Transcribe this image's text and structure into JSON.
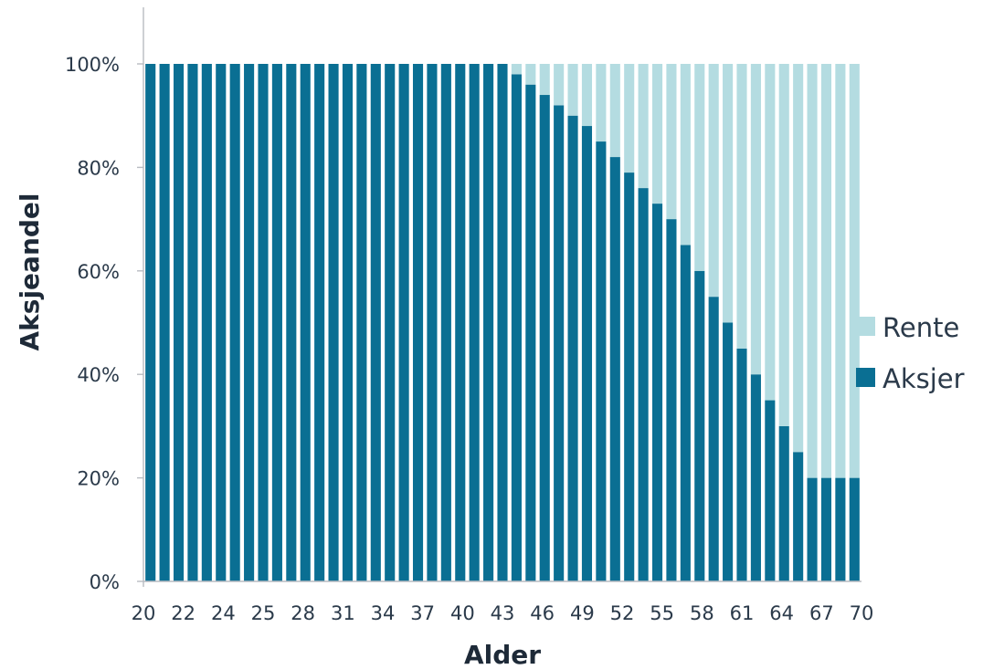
{
  "chart_data": {
    "type": "bar",
    "stacked": true,
    "xlabel": "Alder",
    "ylabel": "Aksjeandel",
    "ylim": [
      0,
      100
    ],
    "y_ticks": [
      "0%",
      "20%",
      "40%",
      "60%",
      "80%",
      "100%"
    ],
    "x": [
      20,
      21,
      22,
      23,
      24,
      25,
      26,
      27,
      28,
      29,
      30,
      31,
      32,
      33,
      34,
      35,
      36,
      37,
      38,
      39,
      40,
      41,
      42,
      43,
      44,
      45,
      46,
      47,
      48,
      49,
      50,
      51,
      52,
      53,
      54,
      55,
      56,
      57,
      58,
      59,
      60,
      61,
      62,
      63,
      64,
      65,
      66,
      67,
      68,
      69,
      70
    ],
    "x_tick_labels": [
      "20",
      "22",
      "24",
      "25",
      "28",
      "31",
      "34",
      "37",
      "40",
      "43",
      "46",
      "49",
      "52",
      "55",
      "58",
      "61",
      "64",
      "67",
      "70"
    ],
    "series": [
      {
        "name": "Aksjer",
        "color": "#0a6f93",
        "values": [
          100,
          100,
          100,
          100,
          100,
          100,
          100,
          100,
          100,
          100,
          100,
          100,
          100,
          100,
          100,
          100,
          100,
          100,
          100,
          100,
          100,
          100,
          100,
          100,
          100,
          100,
          98,
          96,
          94,
          92,
          90,
          88,
          85,
          82,
          79,
          76,
          73,
          70,
          65,
          60,
          55,
          50,
          45,
          40,
          35,
          30,
          25,
          20,
          20,
          20,
          20
        ]
      },
      {
        "name": "Rente",
        "color": "#b4dce1",
        "values": [
          0,
          0,
          0,
          0,
          0,
          0,
          0,
          0,
          0,
          0,
          0,
          0,
          0,
          0,
          0,
          0,
          0,
          0,
          0,
          0,
          0,
          0,
          0,
          0,
          0,
          0,
          2,
          4,
          6,
          8,
          10,
          12,
          15,
          18,
          21,
          24,
          27,
          30,
          35,
          40,
          45,
          50,
          55,
          60,
          65,
          70,
          75,
          80,
          80,
          80,
          80
        ]
      }
    ],
    "legend": {
      "position": "right",
      "entries": [
        "Rente",
        "Aksjer"
      ]
    },
    "grid": false
  }
}
